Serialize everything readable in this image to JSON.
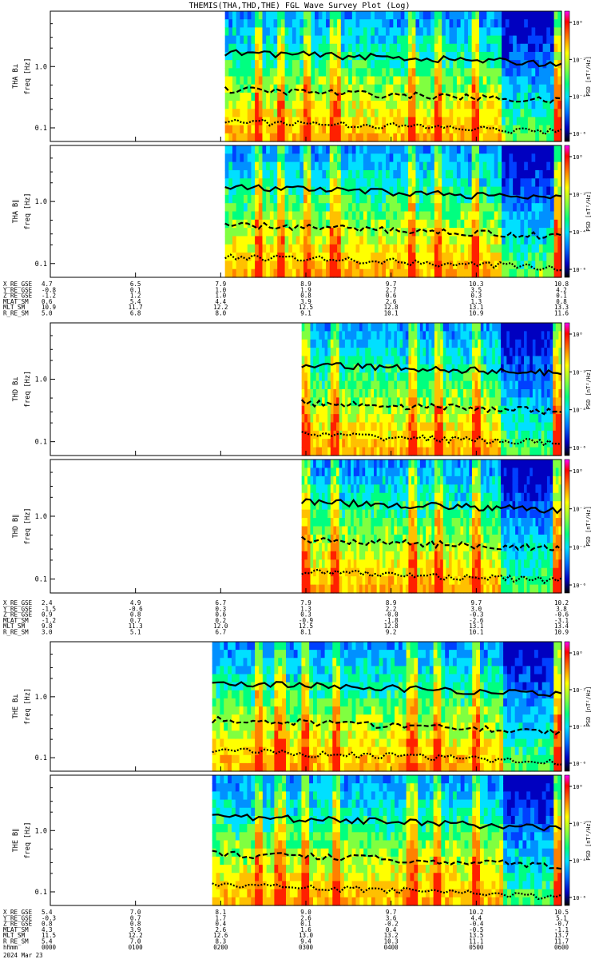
{
  "title": "THEMIS(THA,THD,THE) FGL Wave Survey Plot (Log)",
  "date_label": "2024 Mar 23",
  "colorbar": {
    "label": "PSD [nT²/Hz]",
    "ticks": [
      "10⁰",
      "10⁻²",
      "10⁻⁴",
      "10⁻⁶"
    ],
    "colors": [
      "#ff00ff",
      "#ff0000",
      "#ff8000",
      "#ffff00",
      "#80ff40",
      "#00ff80",
      "#00e0ff",
      "#0070ff",
      "#0000c0",
      "#000000"
    ]
  },
  "freq_ticks": [
    "1.0",
    "0.1"
  ],
  "ephem_keys": [
    "X_RE_GSE",
    "Y_RE_GSE",
    "Z_RE_GSE",
    "MLAT_SM",
    "MLT_SM",
    "R_RE_SM"
  ],
  "ephem_keys_last": [
    "X_RE_GSE",
    "Y_RE_GSE",
    "Z_RE_GSE",
    "MLAT_SM",
    "MLT_SM",
    "R_RE_SM",
    "hhmm"
  ],
  "hhmm": [
    "0000",
    "0100",
    "0200",
    "0300",
    "0400",
    "0500",
    "0600"
  ],
  "chart_data": [
    {
      "type": "heatmap",
      "title": "THEMIS(THA,THD,THE) FGL Wave Survey Plot (Log)",
      "probe": "THA",
      "panels": [
        {
          "ylabel": "freq [Hz]",
          "component": "THA B⊥",
          "data_start_hour": 2.05
        },
        {
          "ylabel": "freq [Hz]",
          "component": "THA B∥",
          "data_start_hour": 2.05
        }
      ],
      "ylim_hz": [
        0.06,
        8
      ],
      "yscale": "log",
      "xlim_hours": [
        0,
        6
      ],
      "ephemeris": {
        "X_RE_GSE": [
          "4.7",
          "6.5",
          "7.9",
          "8.9",
          "9.7",
          "10.3",
          "10.8"
        ],
        "Y_RE_GSE": [
          "-0.8",
          "0.1",
          "1.0",
          "1.9",
          "2.7",
          "3.5",
          "4.2"
        ],
        "Z_RE_GSE": [
          "-1.2",
          "1.2",
          "1.0",
          "0.8",
          "0.6",
          "0.3",
          "0.1"
        ],
        "MLAT_SM": [
          "0.6",
          "5.4",
          "4.4",
          "3.9",
          "2.6",
          "1.3",
          "0.8"
        ],
        "MLT_SM": [
          "10.9",
          "11.7",
          "12.2",
          "12.5",
          "12.8",
          "13.1",
          "13.3"
        ],
        "R_RE_SM": [
          "5.0",
          "6.8",
          "8.0",
          "9.1",
          "10.1",
          "10.9",
          "11.6"
        ]
      }
    },
    {
      "type": "heatmap",
      "probe": "THD",
      "panels": [
        {
          "ylabel": "freq [Hz]",
          "component": "THD B⊥",
          "data_start_hour": 2.95
        },
        {
          "ylabel": "freq [Hz]",
          "component": "THD B∥",
          "data_start_hour": 2.95
        }
      ],
      "ylim_hz": [
        0.06,
        8
      ],
      "yscale": "log",
      "xlim_hours": [
        0,
        6
      ],
      "ephemeris": {
        "X_RE_GSE": [
          "2.4",
          "4.9",
          "6.7",
          "7.9",
          "8.9",
          "9.7",
          "10.2"
        ],
        "Y_RE_GSE": [
          "-1.5",
          "-0.6",
          "0.3",
          "1.3",
          "2.2",
          "3.0",
          "3.8"
        ],
        "Z_RE_GSE": [
          "0.9",
          "0.8",
          "0.6",
          "0.3",
          "-0.0",
          "-0.3",
          "-0.6"
        ],
        "MLAT_SM": [
          "-1.2",
          "0.7",
          "0.2",
          "-0.9",
          "-1.8",
          "-2.6",
          "-3.1"
        ],
        "MLT_SM": [
          "9.8",
          "11.3",
          "12.0",
          "12.5",
          "12.8",
          "13.1",
          "13.4"
        ],
        "R_RE_SM": [
          "3.0",
          "5.1",
          "6.7",
          "8.1",
          "9.2",
          "10.1",
          "10.9"
        ]
      }
    },
    {
      "type": "heatmap",
      "probe": "THE",
      "panels": [
        {
          "ylabel": "freq [Hz]",
          "component": "THE B⊥",
          "data_start_hour": 1.9
        },
        {
          "ylabel": "freq [Hz]",
          "component": "THE B∥",
          "data_start_hour": 1.9
        }
      ],
      "ylim_hz": [
        0.06,
        8
      ],
      "yscale": "log",
      "xlim_hours": [
        0,
        6
      ],
      "ephemeris": {
        "X_RE_GSE": [
          "5.4",
          "7.0",
          "8.1",
          "9.0",
          "9.7",
          "10.2",
          "10.5"
        ],
        "Y_RE_GSE": [
          "-0.3",
          "0.7",
          "1.7",
          "2.6",
          "3.6",
          "4.4",
          "5.1"
        ],
        "Z_RE_GSE": [
          "0.8",
          "0.8",
          "0.4",
          "0.1",
          "-0.2",
          "-0.4",
          "-0.7"
        ],
        "MLAT_SM": [
          "4.3",
          "3.9",
          "2.6",
          "1.6",
          "0.4",
          "-0.5",
          "-1.1"
        ],
        "MLT_SM": [
          "11.5",
          "12.2",
          "12.6",
          "13.0",
          "13.2",
          "13.5",
          "13.7"
        ],
        "R_RE_SM": [
          "5.4",
          "7.0",
          "8.3",
          "9.4",
          "10.3",
          "11.1",
          "11.7"
        ]
      }
    }
  ]
}
